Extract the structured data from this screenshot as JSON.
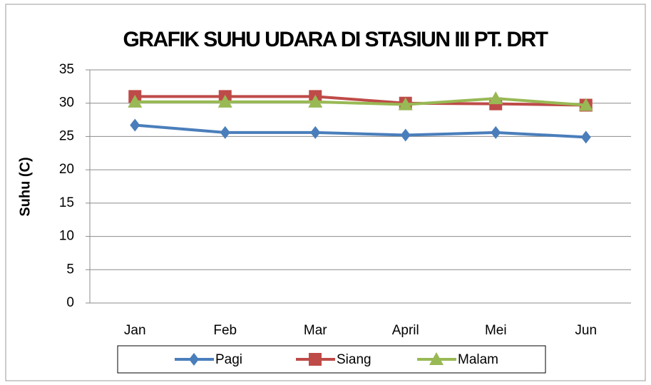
{
  "chart_data": {
    "type": "line",
    "title": "GRAFIK SUHU UDARA DI STASIUN III PT. DRT",
    "y_label": "Suhu (C)",
    "categories": [
      "Jan",
      "Feb",
      "Mar",
      "April",
      "Mei",
      "Jun"
    ],
    "series": [
      {
        "name": "Pagi",
        "color": "#4a7ebb",
        "marker": "diamond",
        "values": [
          26.7,
          25.6,
          25.6,
          25.2,
          25.6,
          24.9
        ]
      },
      {
        "name": "Siang",
        "color": "#be4b48",
        "marker": "square",
        "values": [
          31.0,
          31.0,
          31.0,
          30.0,
          29.9,
          29.7
        ]
      },
      {
        "name": "Malam",
        "color": "#98b954",
        "marker": "triangle",
        "values": [
          30.2,
          30.2,
          30.2,
          29.8,
          30.7,
          29.7
        ]
      }
    ],
    "ylim": [
      0,
      35
    ],
    "yticks": [
      0,
      5,
      10,
      15,
      20,
      25,
      30,
      35
    ],
    "grid": true,
    "legend": "bottom"
  }
}
